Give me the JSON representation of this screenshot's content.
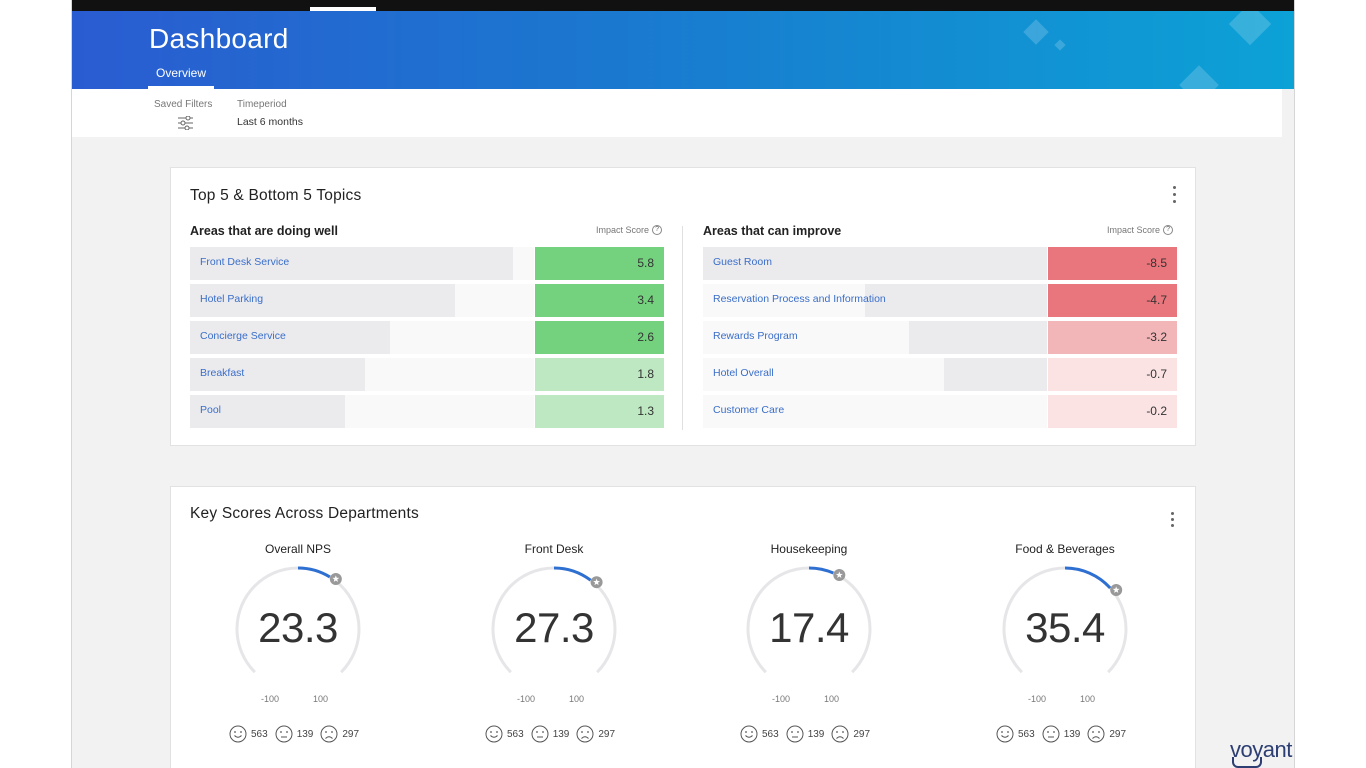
{
  "header": {
    "title": "Dashboard",
    "tab_overview": "Overview"
  },
  "filters": {
    "saved_filters_label": "Saved Filters",
    "timeperiod_label": "Timeperiod",
    "timeperiod_value": "Last 6 months"
  },
  "topics": {
    "title": "Top 5 & Bottom 5 Topics",
    "doing_well_heading": "Areas that are doing well",
    "can_improve_heading": "Areas that can improve",
    "impact_score_label": "Impact Score",
    "doing_well": [
      {
        "label": "Front Desk Service",
        "score": "5.8",
        "bar_fraction": 0.94
      },
      {
        "label": "Hotel Parking",
        "score": "3.4",
        "bar_fraction": 0.77
      },
      {
        "label": "Concierge Service",
        "score": "2.6",
        "bar_fraction": 0.58
      },
      {
        "label": "Breakfast",
        "score": "1.8",
        "bar_fraction": 0.51
      },
      {
        "label": "Pool",
        "score": "1.3",
        "bar_fraction": 0.45
      }
    ],
    "can_improve": [
      {
        "label": "Guest Room",
        "score": "-8.5",
        "bar_fraction": 1.0
      },
      {
        "label": "Reservation Process and Information",
        "score": "-4.7",
        "bar_fraction": 0.53
      },
      {
        "label": "Rewards Program",
        "score": "-3.2",
        "bar_fraction": 0.4
      },
      {
        "label": "Hotel Overall",
        "score": "-0.7",
        "bar_fraction": 0.3
      },
      {
        "label": "Customer Care",
        "score": "-0.2",
        "bar_fraction": 0.0
      }
    ],
    "colors": {
      "well_strong": "#74d27f",
      "well_light": "#bde8c1",
      "improve_strong": "#e8767c",
      "improve_mid": "#f2b5b8",
      "improve_light": "#fbe3e4"
    }
  },
  "scores": {
    "title": "Key Scores Across Departments",
    "accent_color": "#2e6fd2",
    "track_color": "#e6e6e9",
    "min_label": "-100",
    "max_label": "100",
    "gauges": [
      {
        "title": "Overall NPS",
        "value": "23.3",
        "numeric": 23.3,
        "positive": "563",
        "neutral": "139",
        "negative": "297"
      },
      {
        "title": "Front Desk",
        "value": "27.3",
        "numeric": 27.3,
        "positive": "563",
        "neutral": "139",
        "negative": "297"
      },
      {
        "title": "Housekeeping",
        "value": "17.4",
        "numeric": 17.4,
        "positive": "563",
        "neutral": "139",
        "negative": "297"
      },
      {
        "title": "Food & Beverages",
        "value": "35.4",
        "numeric": 35.4,
        "positive": "563",
        "neutral": "139",
        "negative": "297"
      }
    ]
  },
  "brand": {
    "text": "voyant"
  },
  "icons": {
    "filter": "sliders-icon",
    "help": "help-circle-icon",
    "menu": "kebab-menu-icon",
    "star": "star-badge-icon",
    "happy": "smile-face-icon",
    "neutral": "neutral-face-icon",
    "sad": "sad-face-icon"
  }
}
